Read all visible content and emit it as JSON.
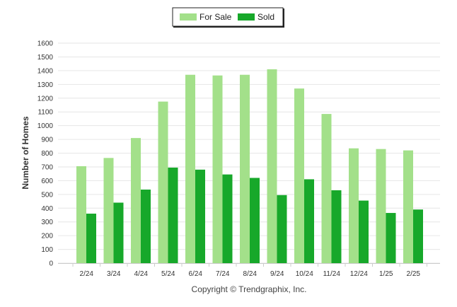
{
  "chart_data": {
    "type": "bar",
    "categories": [
      "2/24",
      "3/24",
      "4/24",
      "5/24",
      "6/24",
      "7/24",
      "8/24",
      "9/24",
      "10/24",
      "11/24",
      "12/24",
      "1/25",
      "2/25"
    ],
    "series": [
      {
        "name": "For Sale",
        "color": "#a3e08a",
        "values": [
          705,
          765,
          910,
          1175,
          1370,
          1365,
          1370,
          1410,
          1270,
          1085,
          835,
          830,
          820
        ]
      },
      {
        "name": "Sold",
        "color": "#17a82a",
        "values": [
          360,
          440,
          535,
          695,
          680,
          645,
          620,
          495,
          610,
          530,
          455,
          365,
          390
        ]
      }
    ],
    "ylabel": "Number of Homes",
    "xlabel": "",
    "ylim": [
      0,
      1600
    ],
    "yticks": [
      "0",
      "100",
      "200",
      "300",
      "400",
      "500",
      "600",
      "700",
      "800",
      "900",
      "1000",
      "1100",
      "1200",
      "1300",
      "1400",
      "1500",
      "1600"
    ],
    "grid": true,
    "legend": "top-center"
  },
  "footer": {
    "credit": "Copyright © Trendgraphix, Inc."
  }
}
